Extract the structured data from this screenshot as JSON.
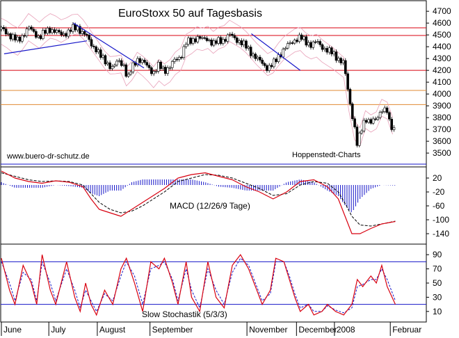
{
  "chart_data": [
    {
      "panel": "price",
      "type": "candlestick",
      "title": "EuroStoxx 50 auf Tagesbasis",
      "watermark_left": "www.buero-dr-schutz.de",
      "watermark_right": "Hoppenstedt-Charts",
      "ylim": [
        3430,
        4760
      ],
      "yticks": [
        3500,
        3600,
        3700,
        3800,
        3900,
        4000,
        4100,
        4200,
        4300,
        4400,
        4500,
        4600,
        4700
      ],
      "grid": false,
      "close_points": [
        [
          0,
          4550
        ],
        [
          4,
          4520
        ],
        [
          8,
          4480
        ],
        [
          12,
          4450
        ],
        [
          16,
          4500
        ],
        [
          20,
          4560
        ],
        [
          24,
          4520
        ],
        [
          28,
          4480
        ],
        [
          32,
          4520
        ],
        [
          36,
          4550
        ],
        [
          40,
          4530
        ],
        [
          44,
          4500
        ],
        [
          48,
          4520
        ],
        [
          52,
          4550
        ],
        [
          56,
          4560
        ],
        [
          58,
          4540
        ],
        [
          62,
          4500
        ],
        [
          66,
          4420
        ],
        [
          70,
          4380
        ],
        [
          74,
          4300
        ],
        [
          78,
          4260
        ],
        [
          82,
          4220
        ],
        [
          86,
          4280
        ],
        [
          90,
          4250
        ],
        [
          93,
          4120
        ],
        [
          96,
          4220
        ],
        [
          100,
          4300
        ],
        [
          104,
          4270
        ],
        [
          108,
          4230
        ],
        [
          112,
          4180
        ],
        [
          116,
          4240
        ],
        [
          120,
          4200
        ],
        [
          124,
          4230
        ],
        [
          128,
          4290
        ],
        [
          132,
          4320
        ],
        [
          136,
          4430
        ],
        [
          140,
          4450
        ],
        [
          144,
          4480
        ],
        [
          148,
          4460
        ],
        [
          152,
          4470
        ],
        [
          156,
          4420
        ],
        [
          160,
          4450
        ],
        [
          164,
          4460
        ],
        [
          168,
          4500
        ],
        [
          172,
          4470
        ],
        [
          176,
          4440
        ],
        [
          180,
          4400
        ],
        [
          184,
          4350
        ],
        [
          188,
          4300
        ],
        [
          192,
          4260
        ],
        [
          196,
          4220
        ],
        [
          200,
          4250
        ],
        [
          204,
          4320
        ],
        [
          208,
          4380
        ],
        [
          212,
          4420
        ],
        [
          216,
          4460
        ],
        [
          220,
          4480
        ],
        [
          224,
          4440
        ],
        [
          228,
          4420
        ],
        [
          232,
          4440
        ],
        [
          236,
          4400
        ],
        [
          240,
          4370
        ],
        [
          244,
          4340
        ],
        [
          248,
          4300
        ],
        [
          252,
          4260
        ],
        [
          256,
          3960
        ],
        [
          260,
          3720
        ],
        [
          262,
          3560
        ],
        [
          264,
          3660
        ],
        [
          268,
          3800
        ],
        [
          272,
          3760
        ],
        [
          276,
          3780
        ],
        [
          280,
          3880
        ],
        [
          284,
          3850
        ],
        [
          286,
          3730
        ],
        [
          290,
          3700
        ]
      ],
      "horizontal_lines": [
        {
          "value": 4560,
          "color": "#d8000f"
        },
        {
          "value": 4495,
          "color": "#d8000f"
        },
        {
          "value": 4200,
          "color": "#d8000f"
        },
        {
          "value": 4030,
          "color": "#e08a30"
        },
        {
          "value": 3910,
          "color": "#e08a30"
        }
      ],
      "trend_lines_color": "#1515c8"
    },
    {
      "panel": "macd",
      "type": "line",
      "label": "MACD (12/26/9 Tage)",
      "ylim": [
        -160,
        40
      ],
      "yticks": [
        20,
        -20,
        -60,
        -100,
        -140
      ],
      "macd_points": [
        [
          0,
          40
        ],
        [
          10,
          20
        ],
        [
          20,
          10
        ],
        [
          30,
          5
        ],
        [
          40,
          12
        ],
        [
          50,
          8
        ],
        [
          60,
          -5
        ],
        [
          66,
          -40
        ],
        [
          72,
          -70
        ],
        [
          80,
          -80
        ],
        [
          88,
          -90
        ],
        [
          96,
          -70
        ],
        [
          104,
          -50
        ],
        [
          112,
          -30
        ],
        [
          120,
          -10
        ],
        [
          130,
          20
        ],
        [
          140,
          30
        ],
        [
          150,
          35
        ],
        [
          160,
          25
        ],
        [
          170,
          15
        ],
        [
          180,
          -5
        ],
        [
          190,
          -20
        ],
        [
          200,
          -40
        ],
        [
          210,
          -20
        ],
        [
          220,
          10
        ],
        [
          230,
          15
        ],
        [
          240,
          -5
        ],
        [
          248,
          -40
        ],
        [
          254,
          -100
        ],
        [
          258,
          -140
        ],
        [
          264,
          -140
        ],
        [
          272,
          -125
        ],
        [
          280,
          -112
        ],
        [
          290,
          -105
        ]
      ],
      "signal_points": [
        [
          0,
          35
        ],
        [
          10,
          25
        ],
        [
          20,
          15
        ],
        [
          30,
          10
        ],
        [
          40,
          12
        ],
        [
          50,
          10
        ],
        [
          60,
          0
        ],
        [
          66,
          -25
        ],
        [
          72,
          -50
        ],
        [
          80,
          -70
        ],
        [
          88,
          -80
        ],
        [
          96,
          -75
        ],
        [
          104,
          -60
        ],
        [
          112,
          -40
        ],
        [
          120,
          -20
        ],
        [
          130,
          10
        ],
        [
          140,
          20
        ],
        [
          150,
          30
        ],
        [
          160,
          28
        ],
        [
          170,
          20
        ],
        [
          180,
          5
        ],
        [
          190,
          -10
        ],
        [
          200,
          -30
        ],
        [
          210,
          -25
        ],
        [
          220,
          0
        ],
        [
          230,
          10
        ],
        [
          240,
          5
        ],
        [
          248,
          -20
        ],
        [
          254,
          -60
        ],
        [
          258,
          -90
        ],
        [
          264,
          -115
        ],
        [
          272,
          -118
        ],
        [
          280,
          -112
        ],
        [
          290,
          -104
        ]
      ],
      "histogram_color": "#1515c8",
      "macd_color": "#d8000f",
      "signal_color": "#000000"
    },
    {
      "panel": "stochastic",
      "type": "line",
      "label": "Slow Stochastik (5/3/3)",
      "ylim": [
        0,
        100
      ],
      "yticks": [
        90,
        70,
        50,
        30,
        10
      ],
      "reference_lines": [
        80,
        20
      ],
      "k_points": [
        [
          0,
          85
        ],
        [
          6,
          40
        ],
        [
          10,
          20
        ],
        [
          16,
          75
        ],
        [
          22,
          50
        ],
        [
          26,
          20
        ],
        [
          30,
          90
        ],
        [
          36,
          40
        ],
        [
          40,
          20
        ],
        [
          48,
          80
        ],
        [
          54,
          30
        ],
        [
          58,
          10
        ],
        [
          62,
          50
        ],
        [
          66,
          20
        ],
        [
          70,
          5
        ],
        [
          76,
          40
        ],
        [
          82,
          20
        ],
        [
          88,
          70
        ],
        [
          92,
          85
        ],
        [
          98,
          50
        ],
        [
          104,
          10
        ],
        [
          110,
          80
        ],
        [
          116,
          70
        ],
        [
          120,
          85
        ],
        [
          126,
          50
        ],
        [
          130,
          20
        ],
        [
          136,
          80
        ],
        [
          140,
          30
        ],
        [
          146,
          10
        ],
        [
          152,
          80
        ],
        [
          158,
          30
        ],
        [
          164,
          15
        ],
        [
          170,
          75
        ],
        [
          176,
          90
        ],
        [
          182,
          70
        ],
        [
          186,
          50
        ],
        [
          192,
          20
        ],
        [
          198,
          40
        ],
        [
          202,
          85
        ],
        [
          208,
          80
        ],
        [
          212,
          55
        ],
        [
          216,
          30
        ],
        [
          220,
          10
        ],
        [
          226,
          20
        ],
        [
          230,
          5
        ],
        [
          236,
          10
        ],
        [
          240,
          20
        ],
        [
          246,
          10
        ],
        [
          252,
          5
        ],
        [
          258,
          20
        ],
        [
          262,
          55
        ],
        [
          266,
          45
        ],
        [
          272,
          60
        ],
        [
          276,
          50
        ],
        [
          280,
          75
        ],
        [
          284,
          45
        ],
        [
          290,
          20
        ]
      ],
      "d_points": [
        [
          0,
          80
        ],
        [
          6,
          50
        ],
        [
          10,
          25
        ],
        [
          16,
          65
        ],
        [
          22,
          55
        ],
        [
          26,
          25
        ],
        [
          30,
          80
        ],
        [
          36,
          50
        ],
        [
          40,
          25
        ],
        [
          48,
          70
        ],
        [
          54,
          40
        ],
        [
          58,
          15
        ],
        [
          62,
          40
        ],
        [
          66,
          25
        ],
        [
          70,
          10
        ],
        [
          76,
          35
        ],
        [
          82,
          25
        ],
        [
          88,
          60
        ],
        [
          92,
          80
        ],
        [
          98,
          60
        ],
        [
          104,
          20
        ],
        [
          110,
          70
        ],
        [
          116,
          75
        ],
        [
          120,
          80
        ],
        [
          126,
          55
        ],
        [
          130,
          25
        ],
        [
          136,
          70
        ],
        [
          140,
          40
        ],
        [
          146,
          15
        ],
        [
          152,
          70
        ],
        [
          158,
          40
        ],
        [
          164,
          20
        ],
        [
          170,
          65
        ],
        [
          176,
          85
        ],
        [
          182,
          75
        ],
        [
          186,
          55
        ],
        [
          192,
          25
        ],
        [
          198,
          35
        ],
        [
          202,
          80
        ],
        [
          208,
          80
        ],
        [
          212,
          60
        ],
        [
          216,
          35
        ],
        [
          220,
          15
        ],
        [
          226,
          20
        ],
        [
          230,
          10
        ],
        [
          236,
          10
        ],
        [
          240,
          18
        ],
        [
          246,
          12
        ],
        [
          252,
          8
        ],
        [
          258,
          15
        ],
        [
          262,
          45
        ],
        [
          266,
          48
        ],
        [
          272,
          55
        ],
        [
          276,
          55
        ],
        [
          280,
          70
        ],
        [
          284,
          55
        ],
        [
          290,
          25
        ]
      ],
      "k_color": "#d8000f",
      "d_color": "#1515c8",
      "ref_color": "#1515c8"
    }
  ],
  "x_axis": {
    "months": [
      {
        "label": "June",
        "at": 0
      },
      {
        "label": "July",
        "at": 45
      },
      {
        "label": "August",
        "at": 91
      },
      {
        "label": "September",
        "at": 141
      },
      {
        "label": "November",
        "at": 233
      },
      {
        "label": "December",
        "at": 280
      },
      {
        "label": "2008",
        "at": 316
      },
      {
        "label": "Februar",
        "at": 369
      }
    ]
  }
}
